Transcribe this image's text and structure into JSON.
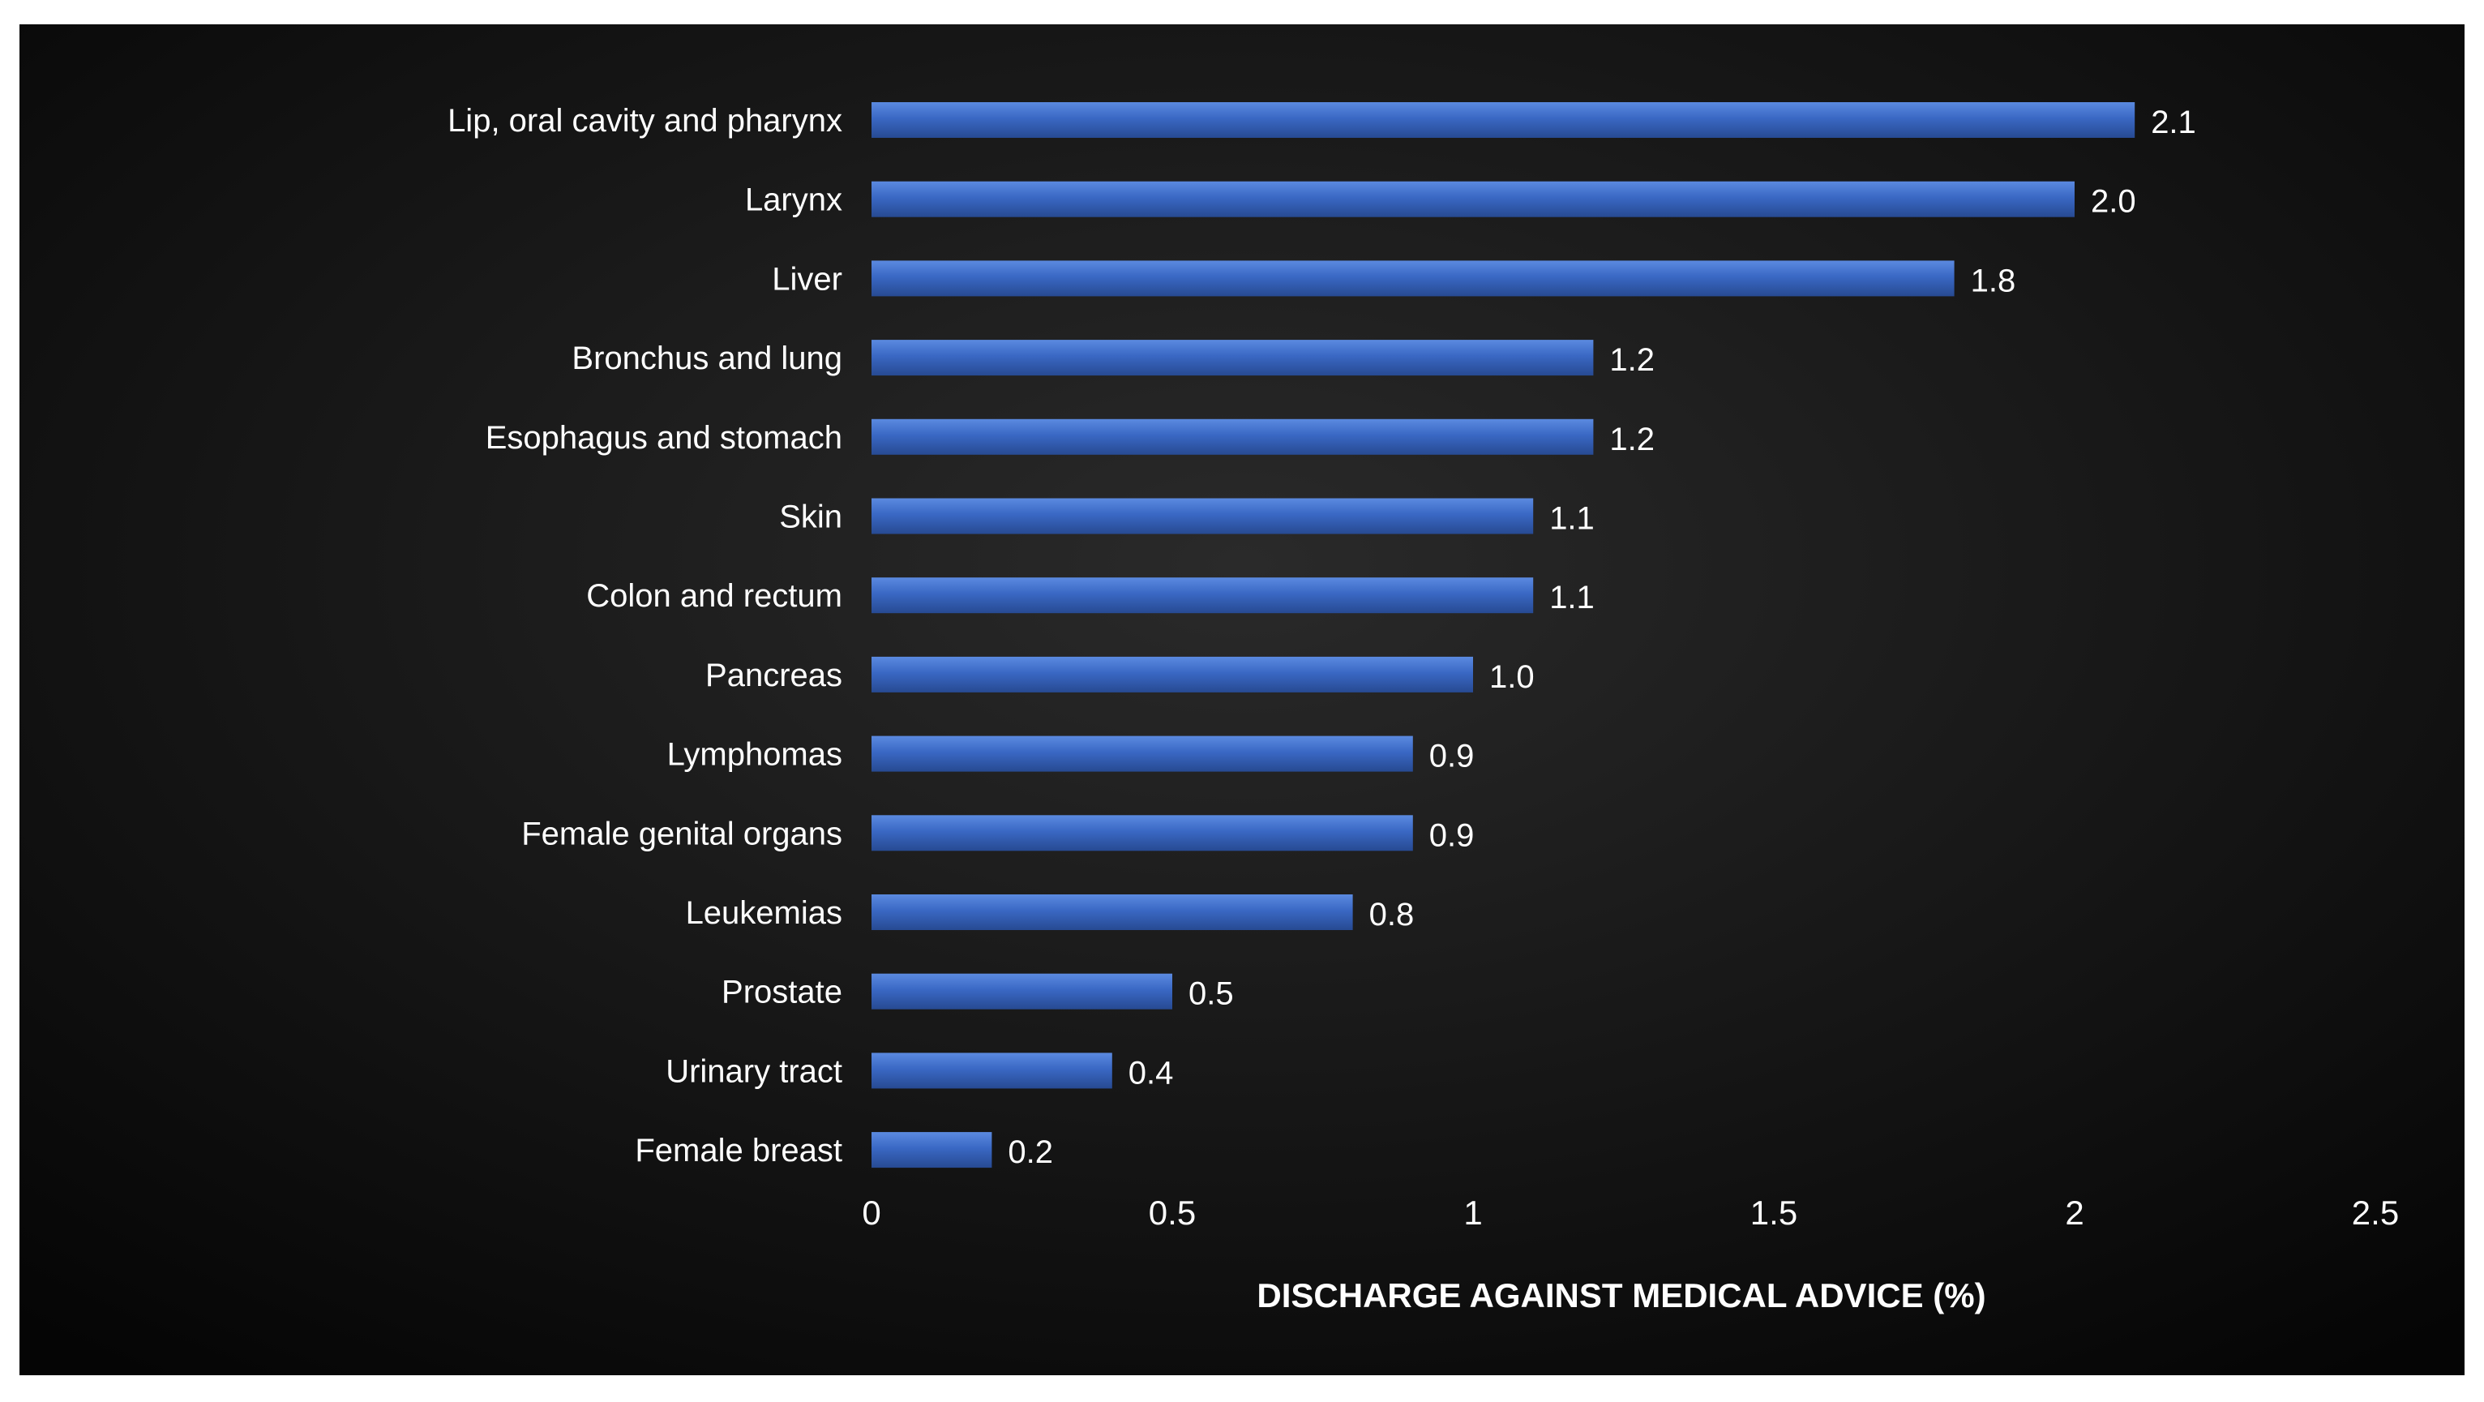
{
  "chart_data": {
    "type": "bar",
    "orientation": "horizontal",
    "categories": [
      "Lip, oral cavity and pharynx",
      "Larynx",
      "Liver",
      "Bronchus and lung",
      "Esophagus and stomach",
      "Skin",
      "Colon and rectum",
      "Pancreas",
      "Lymphomas",
      "Female genital organs",
      "Leukemias",
      "Prostate",
      "Urinary tract",
      "Female breast"
    ],
    "values": [
      2.1,
      2.0,
      1.8,
      1.2,
      1.2,
      1.1,
      1.1,
      1.0,
      0.9,
      0.9,
      0.8,
      0.5,
      0.4,
      0.2
    ],
    "value_labels": [
      "2.1",
      "2.0",
      "1.8",
      "1.2",
      "1.2",
      "1.1",
      "1.1",
      "1.0",
      "0.9",
      "0.9",
      "0.8",
      "0.5",
      "0.4",
      "0.2"
    ],
    "xticks": [
      0,
      0.5,
      1,
      1.5,
      2,
      2.5
    ],
    "xtick_labels": [
      "0",
      "0.5",
      "1",
      "1.5",
      "2",
      "2.5"
    ],
    "xlim": [
      0,
      2.5
    ],
    "xlabel": "DISCHARGE AGAINST MEDICAL ADVICE (%)",
    "ylabel": "",
    "title": "",
    "grid": false,
    "legend": "none",
    "colors": {
      "bar": "#3a68c4",
      "bar_highlight": "#5b8ae0",
      "bar_shadow": "#274a92",
      "background_center": "#2a2a2a",
      "background_edge": "#050505",
      "frame": "#ffffff",
      "text": "#ffffff"
    }
  }
}
